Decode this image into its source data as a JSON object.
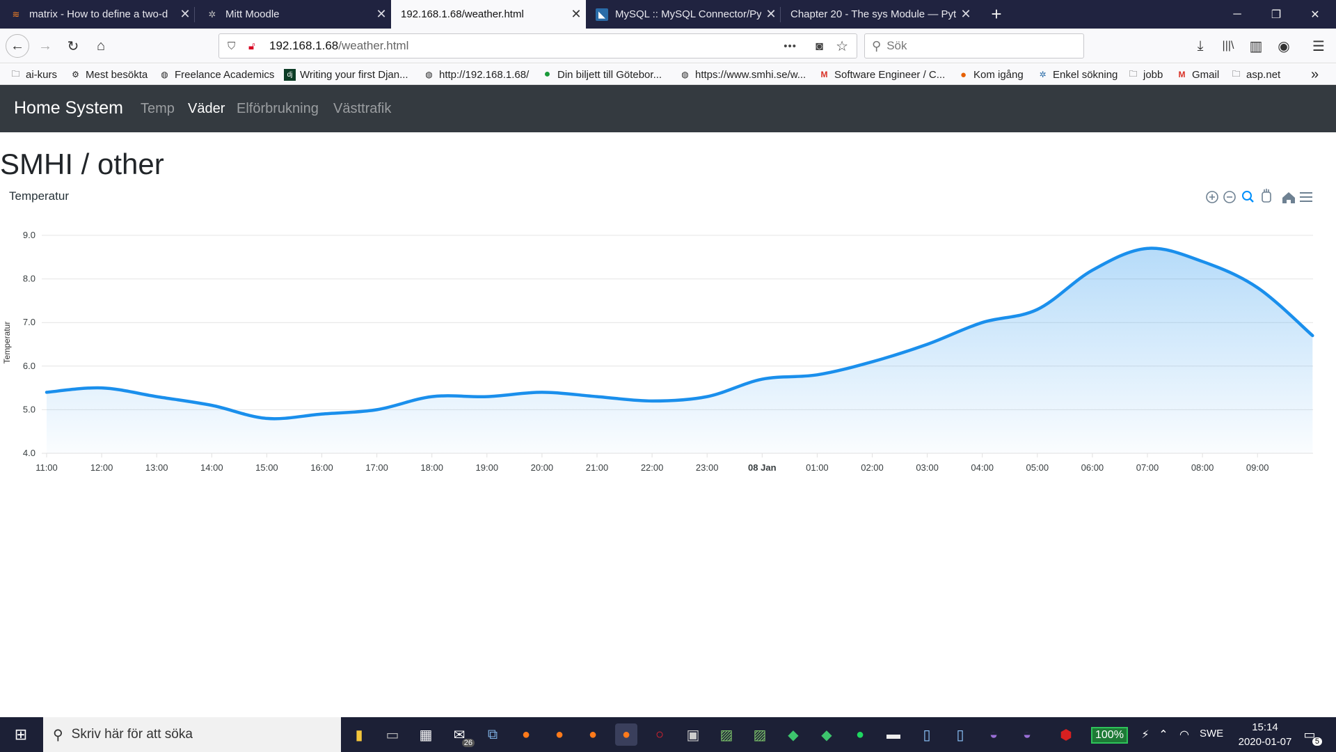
{
  "browser": {
    "tabs": [
      {
        "title": "matrix - How to define a two-d",
        "active": false
      },
      {
        "title": "Mitt Moodle",
        "active": false
      },
      {
        "title": "192.168.1.68/weather.html",
        "active": true
      },
      {
        "title": "MySQL :: MySQL Connector/Pyt",
        "active": false
      },
      {
        "title": "Chapter 20 - The sys Module — Pyt",
        "active": false
      }
    ],
    "new_tab": "+",
    "url_host": "192.168.1.68",
    "url_path": "/weather.html",
    "url_more": "•••",
    "search_placeholder": "Sök",
    "bookmarks": [
      {
        "label": "ai-kurs",
        "icon": "folder-icon"
      },
      {
        "label": "Mest besökta",
        "icon": "gear-icon"
      },
      {
        "label": "Freelance Academics",
        "icon": "globe-icon"
      },
      {
        "label": "Writing your first Djan...",
        "icon": "django-icon"
      },
      {
        "label": "http://192.168.1.68/",
        "icon": "globe-icon"
      },
      {
        "label": "Din biljett till Götebor...",
        "icon": "green-circle-icon"
      },
      {
        "label": "https://www.smhi.se/w...",
        "icon": "globe-icon"
      },
      {
        "label": "Software Engineer / C...",
        "icon": "gmail-icon"
      },
      {
        "label": "Kom igång",
        "icon": "firefox-icon"
      },
      {
        "label": "Enkel sökning",
        "icon": "star-icon"
      },
      {
        "label": "jobb",
        "icon": "folder-icon"
      },
      {
        "label": "Gmail",
        "icon": "gmail-icon"
      },
      {
        "label": "asp.net",
        "icon": "folder-icon"
      }
    ],
    "overflow": "»"
  },
  "app": {
    "brand": "Home System",
    "nav": [
      {
        "label": "Temp",
        "active": false
      },
      {
        "label": "Väder",
        "active": true
      },
      {
        "label": "Elförbrukning",
        "active": false
      },
      {
        "label": "Västtrafik",
        "active": false
      }
    ],
    "heading": "SMHI / other"
  },
  "chart_data": {
    "type": "area",
    "title": "Temperatur",
    "ylabel": "Temperatur",
    "xlabel": "",
    "ylim": [
      4.0,
      9.0
    ],
    "yticks": [
      "4.0",
      "5.0",
      "6.0",
      "7.0",
      "8.0",
      "9.0"
    ],
    "xticks": [
      "11:00",
      "12:00",
      "13:00",
      "14:00",
      "15:00",
      "16:00",
      "17:00",
      "18:00",
      "19:00",
      "20:00",
      "21:00",
      "22:00",
      "23:00",
      "08 Jan",
      "01:00",
      "02:00",
      "03:00",
      "04:00",
      "05:00",
      "06:00",
      "07:00",
      "08:00",
      "09:00"
    ],
    "grid": true,
    "color": "#1a8fec",
    "series": [
      {
        "x": [
          "11:00",
          "12:00",
          "13:00",
          "14:00",
          "15:00",
          "16:00",
          "17:00",
          "18:00",
          "19:00",
          "20:00",
          "21:00",
          "22:00",
          "23:00",
          "00:00",
          "01:00",
          "02:00",
          "03:00",
          "04:00",
          "05:00",
          "06:00",
          "07:00",
          "08:00",
          "09:00",
          "10:00"
        ],
        "values": [
          5.4,
          5.5,
          5.3,
          5.1,
          4.8,
          4.9,
          5.0,
          5.3,
          5.3,
          5.4,
          5.3,
          5.2,
          5.3,
          5.7,
          5.8,
          6.1,
          6.5,
          7.0,
          7.3,
          8.2,
          8.7,
          8.4,
          7.8,
          6.7
        ]
      }
    ]
  },
  "taskbar": {
    "search_placeholder": "Skriv här för att söka",
    "battery": "100%",
    "lang": "SWE",
    "time": "15:14",
    "date": "2020-01-07",
    "notifications": "5",
    "mail_badge": "26"
  }
}
